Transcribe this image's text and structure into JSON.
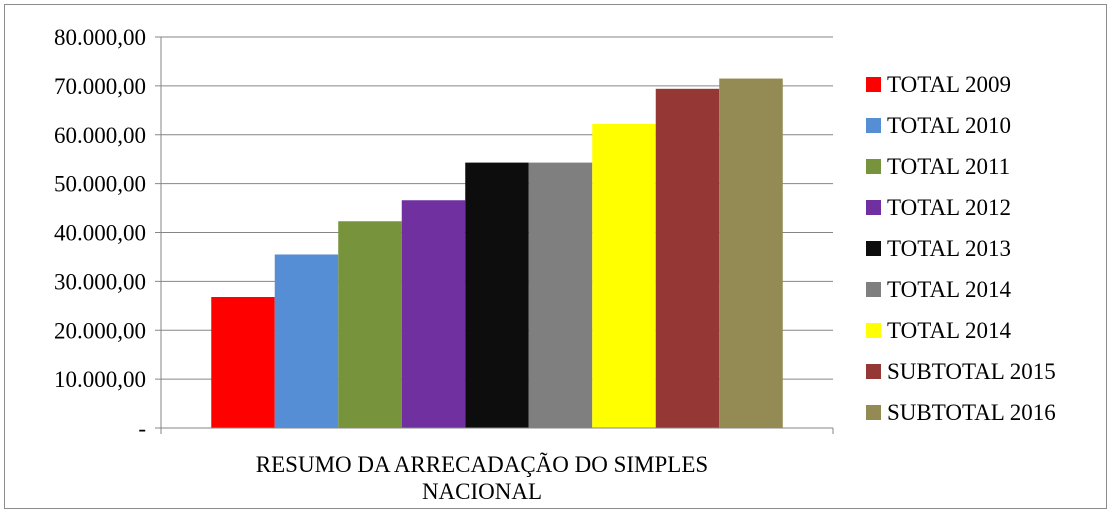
{
  "chart_data": {
    "type": "bar",
    "title": "",
    "xlabel": "",
    "ylabel": "",
    "categories": [
      "RESUMO DA ARRECADAÇÃO DO SIMPLES NACIONAL"
    ],
    "category_label_lines": [
      "RESUMO DA ARRECADAÇÃO DO SIMPLES",
      "NACIONAL"
    ],
    "ylim": [
      0,
      80000
    ],
    "yticks": [
      0,
      10000,
      20000,
      30000,
      40000,
      50000,
      60000,
      70000,
      80000
    ],
    "ytick_labels": [
      "-",
      "10.000,00",
      "20.000,00",
      "30.000,00",
      "40.000,00",
      "50.000,00",
      "60.000,00",
      "70.000,00",
      "80.000,00"
    ],
    "grid": true,
    "legend_position": "right",
    "series": [
      {
        "name": "TOTAL 2009",
        "color": "#ff0000",
        "values": [
          26800
        ]
      },
      {
        "name": "TOTAL 2010",
        "color": "#558ed5",
        "values": [
          35500
        ]
      },
      {
        "name": "TOTAL 2011",
        "color": "#77933c",
        "values": [
          42300
        ]
      },
      {
        "name": "TOTAL 2012",
        "color": "#7030a0",
        "values": [
          46600
        ]
      },
      {
        "name": "TOTAL 2013",
        "color": "#0d0d0d",
        "values": [
          54300
        ]
      },
      {
        "name": "TOTAL 2014",
        "color": "#7f7f7f",
        "values": [
          54300
        ]
      },
      {
        "name": "TOTAL 2014",
        "color": "#ffff00",
        "values": [
          62200
        ]
      },
      {
        "name": "SUBTOTAL 2015",
        "color": "#953735",
        "values": [
          69400
        ]
      },
      {
        "name": "SUBTOTAL 2016",
        "color": "#948a54",
        "values": [
          71500
        ]
      }
    ]
  }
}
